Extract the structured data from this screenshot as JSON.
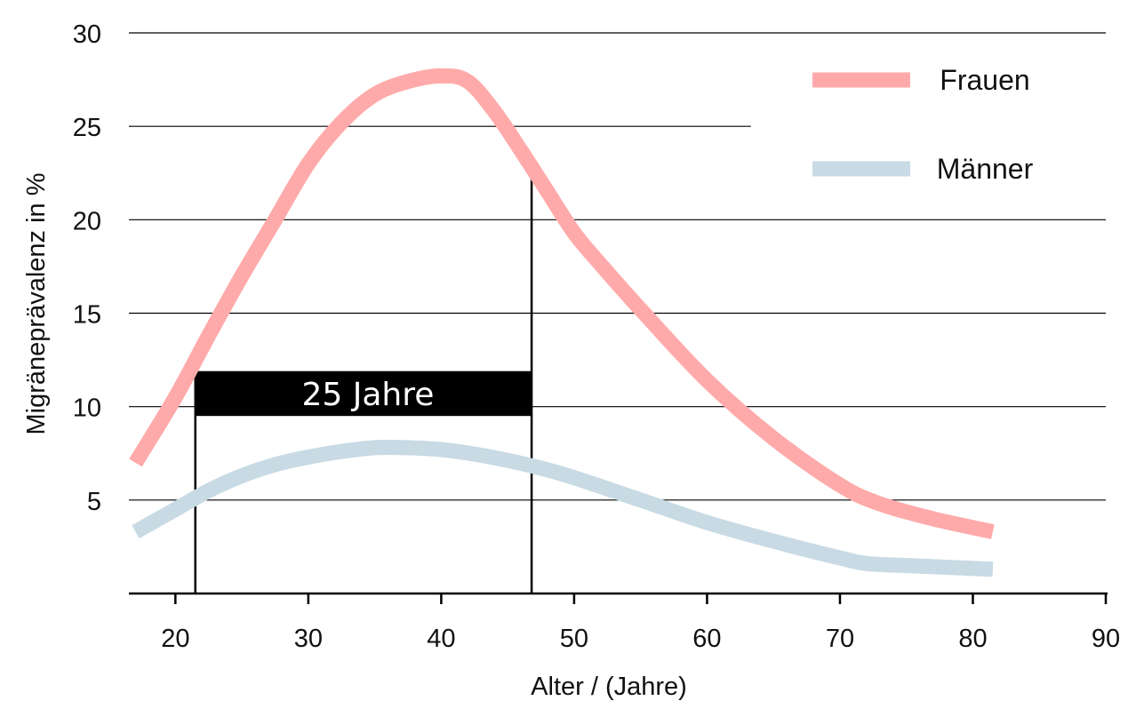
{
  "chart_data": {
    "type": "line",
    "title": "",
    "xlabel": "Alter / (Jahre)",
    "ylabel": "Migränеprävalenz in %",
    "xlim": [
      16.5,
      90
    ],
    "ylim": [
      0,
      30
    ],
    "x_ticks": [
      20,
      30,
      40,
      50,
      60,
      70,
      80,
      90
    ],
    "y_ticks": [
      5,
      10,
      15,
      20,
      25,
      30
    ],
    "grid": "horizontal",
    "legend_position": "top-right",
    "series": [
      {
        "name": "Frauen",
        "color": "#ffaaaa",
        "points": [
          [
            17,
            7.0
          ],
          [
            20,
            10.5
          ],
          [
            22.5,
            13.8
          ],
          [
            25,
            17.0
          ],
          [
            27.5,
            20.0
          ],
          [
            30,
            23.0
          ],
          [
            32.5,
            25.2
          ],
          [
            35,
            26.7
          ],
          [
            37.5,
            27.4
          ],
          [
            40,
            27.7
          ],
          [
            42,
            27.4
          ],
          [
            44,
            25.8
          ],
          [
            46,
            23.7
          ],
          [
            48,
            21.5
          ],
          [
            50,
            19.3
          ],
          [
            52,
            17.6
          ],
          [
            55,
            15.2
          ],
          [
            60,
            11.4
          ],
          [
            65,
            8.3
          ],
          [
            70,
            5.8
          ],
          [
            73,
            4.8
          ],
          [
            77,
            4.0
          ],
          [
            81.5,
            3.3
          ]
        ]
      },
      {
        "name": "Männer",
        "color": "#c8dae4",
        "points": [
          [
            17,
            3.3
          ],
          [
            20,
            4.5
          ],
          [
            22.5,
            5.5
          ],
          [
            25,
            6.3
          ],
          [
            27.5,
            6.9
          ],
          [
            30,
            7.3
          ],
          [
            32.5,
            7.6
          ],
          [
            35,
            7.8
          ],
          [
            37.5,
            7.8
          ],
          [
            40,
            7.7
          ],
          [
            43,
            7.4
          ],
          [
            47,
            6.8
          ],
          [
            50,
            6.2
          ],
          [
            55,
            5.0
          ],
          [
            60,
            3.8
          ],
          [
            65,
            2.8
          ],
          [
            70,
            1.9
          ],
          [
            72,
            1.6
          ],
          [
            75,
            1.5
          ],
          [
            81.5,
            1.3
          ]
        ]
      }
    ],
    "annotation": {
      "label": "25 Jahre",
      "x_start": 21.5,
      "x_end": 46.8,
      "box_y_low": 9.5,
      "box_y_high": 11.9,
      "line_top_start": 11.9,
      "line_top_end": 22.5
    }
  }
}
